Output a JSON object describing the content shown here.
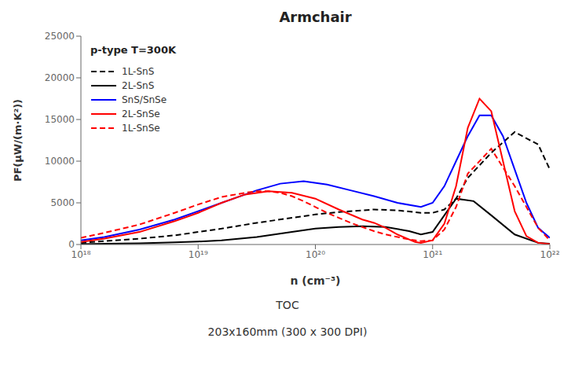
{
  "chart_data": {
    "type": "line",
    "title": "Armchair",
    "subtitle": [
      "TOC",
      "203x160mm (300 x 300 DPI)"
    ],
    "annotations": [
      "p-type T=300K"
    ],
    "x_label": "n (cm⁻³)",
    "y_label": "PF(μW/(m·K²))",
    "log": "x",
    "grid": false,
    "legend": "upper left",
    "xlim": [
      1e+18,
      1e+22
    ],
    "xticks": [
      {
        "value": 1e+18,
        "label": "10¹⁸"
      },
      {
        "value": 1e+19,
        "label": "10¹⁹"
      },
      {
        "value": 1e+20,
        "label": "10²⁰"
      },
      {
        "value": 1e+21,
        "label": "10²¹"
      },
      {
        "value": 1e+22,
        "label": "10²²"
      }
    ],
    "ylim": [
      0,
      25000
    ],
    "yticks": [
      0,
      5000,
      10000,
      15000,
      20000,
      25000
    ],
    "series": [
      {
        "name": "1L-SnS",
        "color": "#000000",
        "line_style": "dashed",
        "x": [
          1e+18,
          1.5848931924611136e+18,
          3.1622776601683794e+18,
          6.309573444801933e+18,
          1e+19,
          1.5848931924611135e+19,
          3.1622776601683796e+19,
          6.309573444801933e+19,
          1e+20,
          1.5848931924611138e+20,
          3.1622776601683794e+20,
          5.011872336272722e+20,
          7.943282347242815e+20,
          1e+21,
          1.2589254117941673e+21,
          1.5848931924611136e+21,
          1.9952623149688795e+21,
          3.1622776601683794e+21,
          5.011872336272722e+21,
          7.943282347242815e+21,
          1e+22
        ],
        "values": [
          200,
          400,
          700,
          1100,
          1500,
          1900,
          2600,
          3200,
          3600,
          3900,
          4200,
          4100,
          3800,
          3800,
          4200,
          5500,
          8000,
          11000,
          13500,
          12000,
          9000
        ]
      },
      {
        "name": "2L-SnS",
        "color": "#000000",
        "line_style": "solid",
        "x": [
          1e+18,
          1.5848931924611136e+18,
          3.1622776601683794e+18,
          6.309573444801933e+18,
          1e+19,
          1.5848931924611135e+19,
          3.1622776601683796e+19,
          6.309573444801933e+19,
          1e+20,
          1.5848931924611138e+20,
          2.51188643150958e+20,
          3.981071705534972e+20,
          6.309573444801933e+20,
          7.943282347242815e+20,
          1e+21,
          1.2589254117941673e+21,
          1.5848931924611136e+21,
          2.2387211385683394e+21,
          3.1622776601683794e+21,
          5.011872336272722e+21,
          7.943282347242815e+21,
          1e+22
        ],
        "values": [
          50,
          100,
          150,
          250,
          350,
          500,
          900,
          1500,
          1900,
          2100,
          2200,
          2100,
          1600,
          1200,
          1500,
          3500,
          5500,
          5200,
          3500,
          1200,
          200,
          100
        ]
      },
      {
        "name": "SnS/SnSe",
        "color": "#0000ff",
        "line_style": "solid",
        "x": [
          1e+18,
          1.5848931924611136e+18,
          3.1622776601683794e+18,
          6.309573444801933e+18,
          1e+19,
          1.5848931924611135e+19,
          3.1622776601683796e+19,
          5.011872336272722e+19,
          7.943282347242815e+19,
          1.2589254117941672e+20,
          1.9952623149688796e+20,
          3.1622776601683794e+20,
          5.011872336272722e+20,
          7.943282347242815e+20,
          1e+21,
          1.2589254117941673e+21,
          1.5848931924611136e+21,
          1.9952623149688795e+21,
          2.51188643150958e+21,
          3.1622776601683794e+21,
          3.9810717055349723e+21,
          5.011872336272722e+21,
          6.309573444801933e+21,
          7.943282347242815e+21,
          1e+22
        ],
        "values": [
          500,
          900,
          1800,
          3000,
          4000,
          5000,
          6500,
          7300,
          7600,
          7200,
          6500,
          5800,
          5000,
          4500,
          5000,
          7000,
          10000,
          13000,
          15500,
          15500,
          13000,
          9000,
          5000,
          2000,
          800
        ]
      },
      {
        "name": "2L-SnSe",
        "color": "#ff0000",
        "line_style": "solid",
        "x": [
          1e+18,
          1.5848931924611136e+18,
          3.1622776601683794e+18,
          6.309573444801933e+18,
          1e+19,
          1.5848931924611135e+19,
          2.51188643150958e+19,
          3.981071705534972e+19,
          6.309573444801933e+19,
          1e+20,
          1.5848931924611138e+20,
          2.51188643150958e+20,
          3.1622776601683794e+20,
          3.981071705534972e+20,
          5.011872336272722e+20,
          6.309573444801933e+20,
          7.079457843841379e+20,
          7.943282347242815e+20,
          1e+21,
          1.2589254117941673e+21,
          1.5848931924611136e+21,
          1.9952623149688795e+21,
          2.51188643150958e+21,
          3.1622776601683794e+21,
          3.9810717055349723e+21,
          5.011872336272722e+21,
          6.309573444801933e+21,
          7.943282347242815e+21,
          1e+22
        ],
        "values": [
          300,
          700,
          1500,
          2800,
          3800,
          5000,
          6000,
          6400,
          6200,
          5500,
          4200,
          3000,
          2600,
          2000,
          1200,
          600,
          300,
          200,
          500,
          2500,
          7000,
          14000,
          17500,
          16000,
          10000,
          4000,
          1000,
          200,
          50
        ]
      },
      {
        "name": "1L-SnSe",
        "color": "#ff0000",
        "line_style": "dashed",
        "x": [
          1e+18,
          1.5848931924611136e+18,
          3.1622776601683794e+18,
          6.309573444801933e+18,
          1e+19,
          1.5848931924611135e+19,
          2.51188643150958e+19,
          3.1622776601683796e+19,
          3.981071705534972e+19,
          5.011872336272722e+19,
          6.309573444801933e+19,
          7.943282347242815e+19,
          1e+20,
          1.2589254117941672e+20,
          1.5848931924611138e+20,
          1.9952623149688796e+20,
          2.51188643150958e+20,
          3.1622776601683794e+20,
          3.981071705534972e+20,
          6.309573444801933e+20,
          7.943282347242815e+20,
          1e+21,
          1.2589254117941673e+21,
          1.5848931924611136e+21,
          1.9952623149688795e+21,
          3.1622776601683794e+21,
          5.011872336272722e+21,
          7.943282347242815e+21,
          1e+22
        ],
        "values": [
          800,
          1400,
          2400,
          3800,
          4800,
          5700,
          6200,
          6400,
          6400,
          6200,
          5800,
          5200,
          4500,
          3800,
          3200,
          2600,
          2100,
          1600,
          1200,
          600,
          400,
          500,
          1800,
          4500,
          8500,
          11500,
          7000,
          2000,
          500
        ]
      }
    ]
  }
}
